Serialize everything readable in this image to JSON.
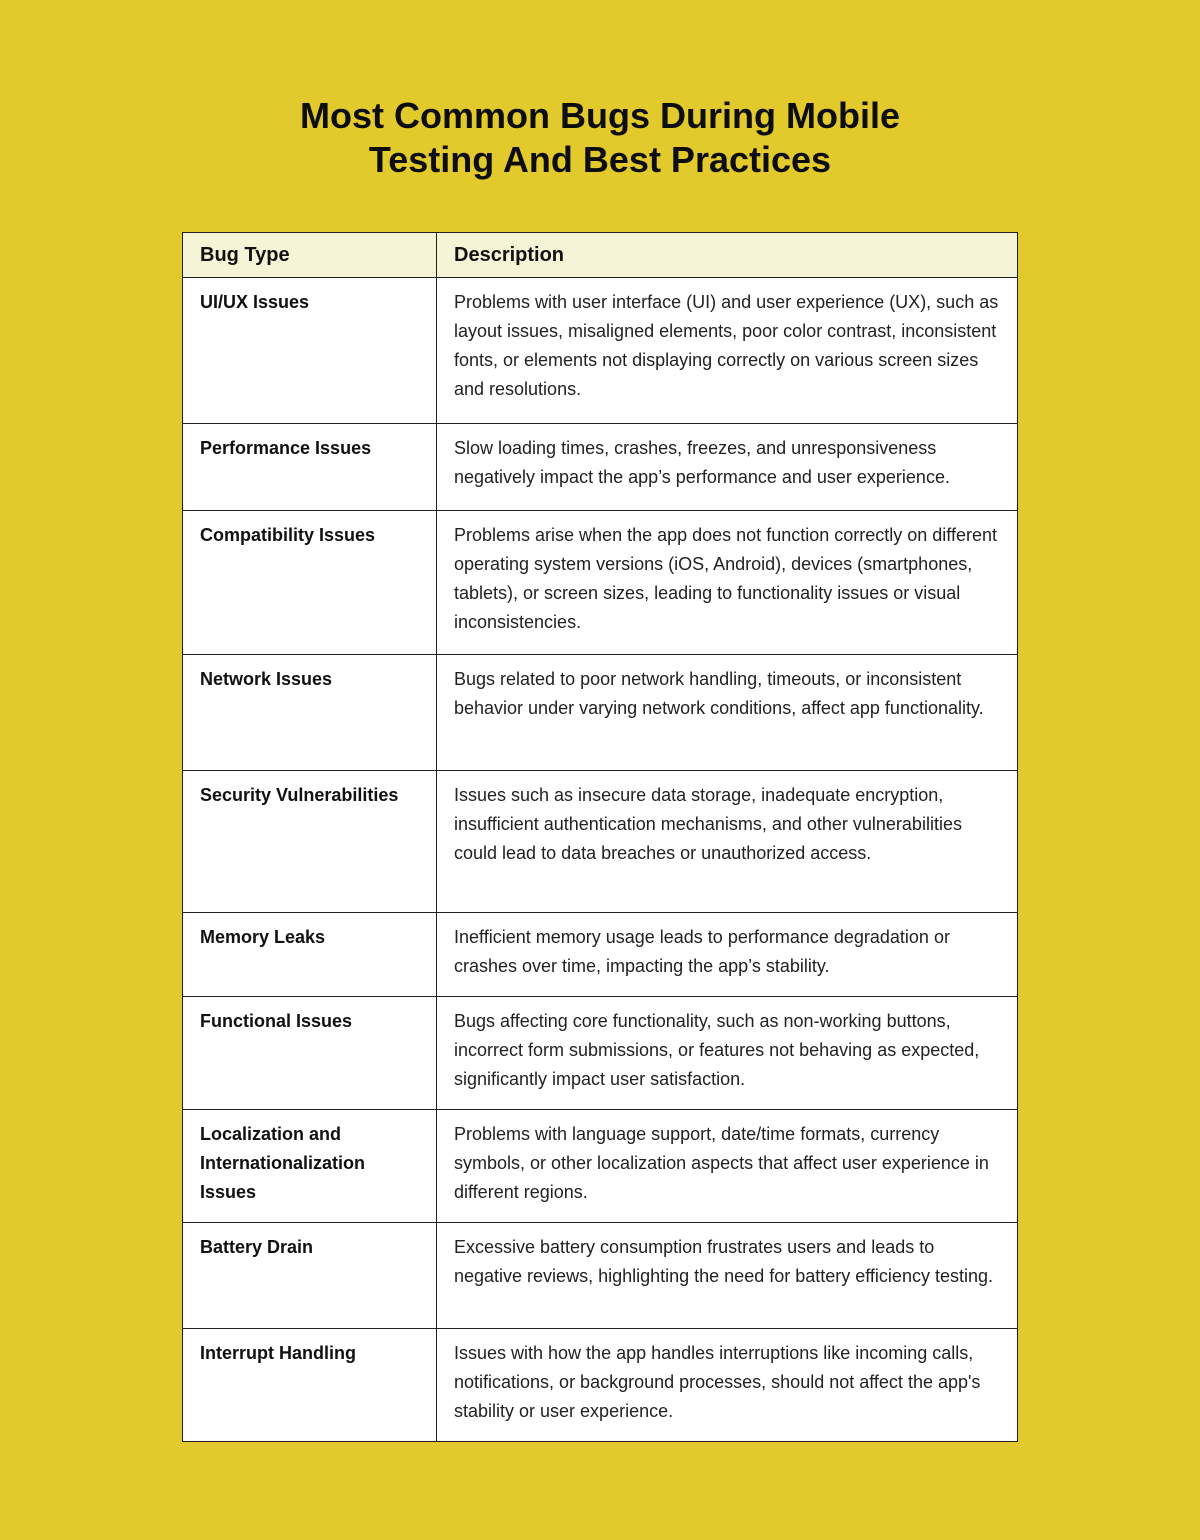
{
  "title": {
    "line1": "Most Common Bugs During Mobile",
    "line2": "Testing And Best Practices"
  },
  "table": {
    "headers": [
      "Bug Type",
      "Description"
    ],
    "rows": [
      {
        "type": "UI/UX Issues",
        "description": "Problems with user interface (UI) and user experience (UX), such as layout issues, misaligned elements, poor color contrast, inconsistent fonts, or elements not displaying correctly on various screen sizes and resolutions."
      },
      {
        "type": "Performance Issues",
        "description": "Slow loading times, crashes, freezes, and unresponsiveness negatively impact the app’s performance and user experience."
      },
      {
        "type": "Compatibility Issues",
        "description": "Problems arise when the app does not function correctly on different operating system versions (iOS, Android), devices (smartphones, tablets), or screen sizes, leading to functionality issues or visual inconsistencies."
      },
      {
        "type": "Network Issues",
        "description": "Bugs related to poor network handling, timeouts, or inconsistent behavior under varying network conditions, affect app functionality."
      },
      {
        "type": "Security Vulnerabilities",
        "description": "Issues such as insecure data storage, inadequate encryption, insufficient authentication mechanisms, and other vulnerabilities could lead to data breaches or unauthorized access."
      },
      {
        "type": "Memory Leaks",
        "description": "Inefficient memory usage leads to performance degradation or crashes over time, impacting the app’s stability."
      },
      {
        "type": "Functional Issues",
        "description": "Bugs affecting core functionality, such as non-working buttons, incorrect form submissions, or features not behaving as expected, significantly impact user satisfaction."
      },
      {
        "type": "Localization and Internationalization Issues",
        "description": "Problems with language support, date/time formats, currency symbols, or other localization aspects that affect user experience in different regions."
      },
      {
        "type": "Battery Drain",
        "description": "Excessive battery consumption frustrates users and leads to negative reviews, highlighting the need for battery efficiency testing."
      },
      {
        "type": "Interrupt Handling",
        "description": "Issues with how the app handles interruptions like incoming calls, notifications, or background processes, should not affect the app's stability or user experience."
      }
    ]
  }
}
